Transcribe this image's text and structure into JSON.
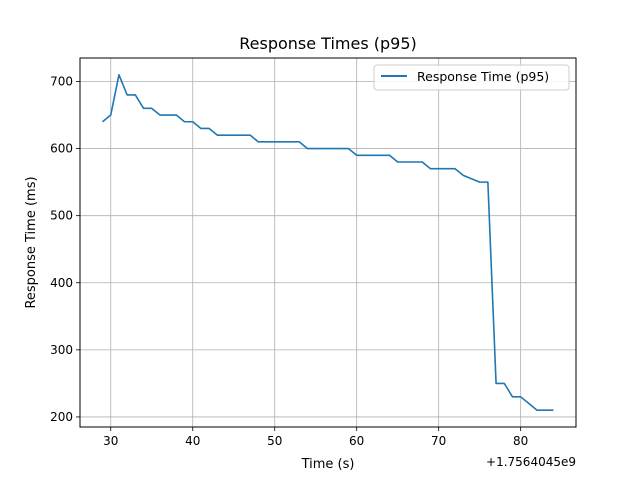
{
  "chart_data": {
    "type": "line",
    "title": "Response Times (p95)",
    "xlabel": "Time (s)",
    "ylabel": "Response Time (ms)",
    "x_offset_label": "+1.7564045e9",
    "xlim": [
      26.25,
      86.75
    ],
    "ylim": [
      185,
      735
    ],
    "xticks": [
      30,
      40,
      50,
      60,
      70,
      80
    ],
    "yticks": [
      200,
      300,
      400,
      500,
      600,
      700
    ],
    "grid": true,
    "legend_position": "top-right",
    "colors": {
      "series": "#1f77b4",
      "grid": "#b0b0b0"
    },
    "series": [
      {
        "name": "Response Time (p95)",
        "x": [
          29,
          30,
          31,
          32,
          33,
          34,
          35,
          36,
          37,
          38,
          39,
          40,
          41,
          42,
          43,
          44,
          45,
          46,
          47,
          48,
          49,
          50,
          51,
          52,
          53,
          54,
          55,
          56,
          57,
          58,
          59,
          60,
          61,
          62,
          63,
          64,
          65,
          66,
          67,
          68,
          69,
          70,
          71,
          72,
          73,
          74,
          75,
          76,
          77,
          78,
          79,
          80,
          81,
          82,
          83,
          84
        ],
        "values": [
          640,
          650,
          710,
          680,
          680,
          660,
          660,
          650,
          650,
          650,
          640,
          640,
          630,
          630,
          620,
          620,
          620,
          620,
          620,
          610,
          610,
          610,
          610,
          610,
          610,
          600,
          600,
          600,
          600,
          600,
          600,
          590,
          590,
          590,
          590,
          590,
          580,
          580,
          580,
          580,
          570,
          570,
          570,
          570,
          560,
          555,
          550,
          550,
          250,
          250,
          230,
          230,
          220,
          210,
          210,
          210
        ]
      }
    ]
  }
}
